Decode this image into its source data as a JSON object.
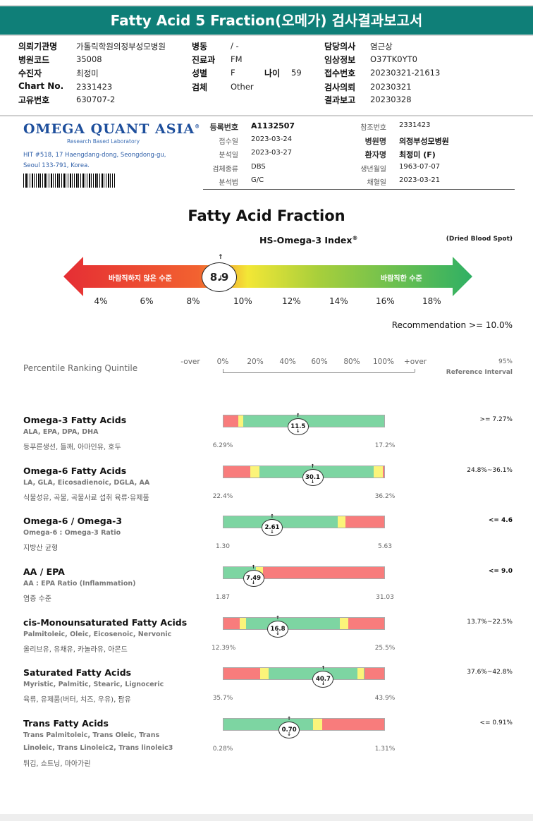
{
  "title": "Fatty Acid 5 Fraction(오메가) 검사결과보고서",
  "header": {
    "col1": [
      {
        "label": "의뢰기관명",
        "value": "가톨릭학원의정부성모병원"
      },
      {
        "label": "병원코드",
        "value": "35008"
      },
      {
        "label": "수진자",
        "value": "최정미"
      },
      {
        "label": "Chart No.",
        "value": "2331423"
      },
      {
        "label": "고유번호",
        "value": "630707-2"
      }
    ],
    "col2": [
      {
        "label": "병동",
        "value": "/ -"
      },
      {
        "label": "진료과",
        "value": "FM"
      },
      {
        "label": "성별",
        "value": "F"
      },
      {
        "label": "검체",
        "value": "Other"
      }
    ],
    "age_label": "나이",
    "age_value": "59",
    "col3": [
      {
        "label": "담당의사",
        "value": "염근상"
      },
      {
        "label": "임상정보",
        "value": "O37TK0YT0"
      },
      {
        "label": "접수번호",
        "value": "20230321-21613"
      },
      {
        "label": "검사의뢰",
        "value": "20230321"
      },
      {
        "label": "결과보고",
        "value": "20230328"
      }
    ]
  },
  "lab": {
    "logo": "OMEGA QUANT ASIA",
    "logo_mark": "®",
    "subtitle": "Research Based Laboratory",
    "address1": "HIT #518, 17 Haengdang-dong, Seongdong-gu,",
    "address2": "Seoul 133-791, Korea."
  },
  "info_left": [
    {
      "label": "등록번호",
      "value": "A1132507"
    },
    {
      "label": "접수일",
      "value": "2023-03-24"
    },
    {
      "label": "분석일",
      "value": "2023-03-27"
    },
    {
      "label": "검체종류",
      "value": "DBS"
    },
    {
      "label": "분석법",
      "value": "G/C"
    }
  ],
  "info_right": [
    {
      "label": "참조번호",
      "value": "2331423"
    },
    {
      "label": "병원명",
      "value": "의정부성모병원"
    },
    {
      "label": "환자명",
      "value": "최정미 (F)"
    },
    {
      "label": "생년월일",
      "value": "1963-07-07"
    },
    {
      "label": "채혈일",
      "value": "2023-03-21"
    }
  ],
  "index": {
    "main_title": "Fatty Acid Fraction",
    "title": "HS-Omega-3 Index",
    "title_mark": "®",
    "dried": "(Dried Blood Spot)",
    "bad_label": "바람직하지 않은 수준",
    "good_label": "바람직한 수준",
    "value": "8.9",
    "ticks": [
      "4%",
      "6%",
      "8%",
      "10%",
      "12%",
      "14%",
      "16%",
      "18%"
    ],
    "recommendation": "Recommendation  >= 10.0%",
    "colors": {
      "bad": "#e8383d",
      "mid": "#f2e534",
      "good": "#3fb466"
    }
  },
  "percentile": {
    "label": "Percentile Ranking Quintile",
    "scale": [
      "-over",
      "0%",
      "20%",
      "40%",
      "60%",
      "80%",
      "100%",
      "+over"
    ],
    "ref_top": "95%",
    "ref_bottom": "Reference Interval"
  },
  "colors": {
    "green": "#7dd5a2",
    "yellow": "#fbf47a",
    "red": "#f87c7c"
  },
  "sections": [
    {
      "title": "Omega-3 Fatty Acids",
      "sub1": "ALA, EPA, DPA, DHA",
      "sub2": "",
      "kr": "등푸른생선, 들깨, 아마인유, 호두",
      "value": "11.5",
      "position": 0.46,
      "min": "6.29%",
      "max": "17.2%",
      "ref": ">= 7.27%",
      "ref_bold": false,
      "segments": [
        {
          "from": 0,
          "to": 0.09,
          "color": "red"
        },
        {
          "from": 0.09,
          "to": 0.125,
          "color": "yellow"
        },
        {
          "from": 0.125,
          "to": 1,
          "color": "green"
        }
      ]
    },
    {
      "title": "Omega-6 Fatty Acids",
      "sub1": "LA, GLA, Eicosadienoic, DGLA, AA",
      "sub2": "",
      "kr": "식물성유, 곡물, 곡물사료 섭취 육류·유제품",
      "value": "30.1",
      "position": 0.55,
      "min": "22.4%",
      "max": "36.2%",
      "ref": "24.8%~36.1%",
      "ref_bold": false,
      "segments": [
        {
          "from": 0,
          "to": 0.165,
          "color": "red"
        },
        {
          "from": 0.165,
          "to": 0.225,
          "color": "yellow"
        },
        {
          "from": 0.225,
          "to": 0.935,
          "color": "green"
        },
        {
          "from": 0.935,
          "to": 0.99,
          "color": "yellow"
        },
        {
          "from": 0.99,
          "to": 1,
          "color": "red"
        }
      ]
    },
    {
      "title": "Omega-6 / Omega-3",
      "sub1": "Omega-6 : Omega-3 Ratio",
      "sub2": "",
      "kr": "지방산 균형",
      "value": "2.61",
      "position": 0.3,
      "min": "1.30",
      "max": "5.63",
      "ref": "<= 4.6",
      "ref_bold": true,
      "segments": [
        {
          "from": 0,
          "to": 0.71,
          "color": "green"
        },
        {
          "from": 0.71,
          "to": 0.76,
          "color": "yellow"
        },
        {
          "from": 0.76,
          "to": 1,
          "color": "red"
        }
      ]
    },
    {
      "title": "AA / EPA",
      "sub1": "AA : EPA Ratio (Inflammation)",
      "sub2": "",
      "kr": "염증 수준",
      "value": "7.49",
      "position": 0.185,
      "min": "1.87",
      "max": "31.03",
      "ref": "<= 9.0",
      "ref_bold": true,
      "segments": [
        {
          "from": 0,
          "to": 0.2,
          "color": "green"
        },
        {
          "from": 0.2,
          "to": 0.245,
          "color": "yellow"
        },
        {
          "from": 0.245,
          "to": 1,
          "color": "red"
        }
      ]
    },
    {
      "title": "cis-Monounsaturated Fatty Acids",
      "sub1": "Palmitoleic, Oleic, Eicosenoic, Nervonic",
      "sub2": "",
      "kr": "올리브유, 유채유, 카놀라유, 아몬드",
      "value": "16.8",
      "position": 0.335,
      "min": "12.39%",
      "max": "25.5%",
      "ref": "13.7%~22.5%",
      "ref_bold": false,
      "segments": [
        {
          "from": 0,
          "to": 0.1,
          "color": "red"
        },
        {
          "from": 0.1,
          "to": 0.14,
          "color": "yellow"
        },
        {
          "from": 0.14,
          "to": 0.725,
          "color": "green"
        },
        {
          "from": 0.725,
          "to": 0.775,
          "color": "yellow"
        },
        {
          "from": 0.775,
          "to": 1,
          "color": "red"
        }
      ]
    },
    {
      "title": "Saturated Fatty Acids",
      "sub1": "Myristic, Palmitic, Stearic, Lignoceric",
      "sub2": "",
      "kr": "육류, 유제품(버터, 치즈, 우유), 팜유",
      "value": "40.7",
      "position": 0.615,
      "min": "35.7%",
      "max": "43.9%",
      "ref": "37.6%~42.8%",
      "ref_bold": false,
      "segments": [
        {
          "from": 0,
          "to": 0.23,
          "color": "red"
        },
        {
          "from": 0.23,
          "to": 0.28,
          "color": "yellow"
        },
        {
          "from": 0.28,
          "to": 0.835,
          "color": "green"
        },
        {
          "from": 0.835,
          "to": 0.875,
          "color": "yellow"
        },
        {
          "from": 0.875,
          "to": 1,
          "color": "red"
        }
      ]
    },
    {
      "title": "Trans Fatty Acids",
      "sub1": "Trans Palmitoleic, Trans Oleic, Trans",
      "sub2": "Linoleic, Trans Linoleic2, Trans linoleic3",
      "kr": "튀김, 쇼트닝, 마아가린",
      "value": "0.70",
      "position": 0.405,
      "min": "0.28%",
      "max": "1.31%",
      "ref": "<= 0.91%",
      "ref_bold": false,
      "segments": [
        {
          "from": 0,
          "to": 0.555,
          "color": "green"
        },
        {
          "from": 0.555,
          "to": 0.615,
          "color": "yellow"
        },
        {
          "from": 0.615,
          "to": 1,
          "color": "red"
        }
      ]
    }
  ]
}
